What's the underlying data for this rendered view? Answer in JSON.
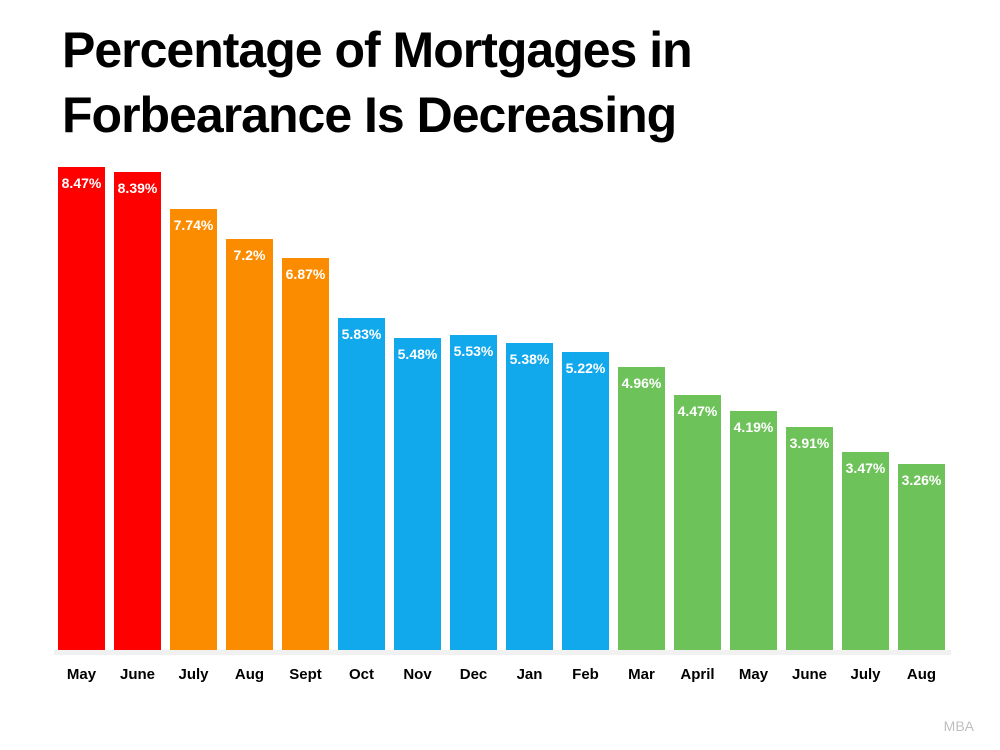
{
  "title": {
    "line1": "Percentage of Mortgages in",
    "line2": "Forbearance Is Decreasing"
  },
  "source_label": "MBA",
  "colors": {
    "red": "#FE0000",
    "orange": "#FB8C00",
    "blue": "#12A8EC",
    "green": "#6EC25A",
    "baseline_band": "#F1F1F1",
    "source_text": "#BFBFBF",
    "title_text": "#000000",
    "bar_value_text": "#FFFFFF"
  },
  "chart_data": {
    "type": "bar",
    "title": "Percentage of Mortgages in Forbearance Is Decreasing",
    "categories": [
      "May",
      "June",
      "July",
      "Aug",
      "Sept",
      "Oct",
      "Nov",
      "Dec",
      "Jan",
      "Feb",
      "Mar",
      "April",
      "May",
      "June",
      "July",
      "Aug"
    ],
    "values": [
      8.47,
      8.39,
      7.74,
      7.2,
      6.87,
      5.83,
      5.48,
      5.53,
      5.38,
      5.22,
      4.96,
      4.47,
      4.19,
      3.91,
      3.47,
      3.26
    ],
    "value_labels": [
      "8.47%",
      "8.39%",
      "7.74%",
      "7.2%",
      "6.87%",
      "5.83%",
      "5.48%",
      "5.53%",
      "5.38%",
      "5.22%",
      "4.96%",
      "4.47%",
      "4.19%",
      "3.91%",
      "3.47%",
      "3.26%"
    ],
    "bar_colors": [
      "#FE0000",
      "#FE0000",
      "#FB8C00",
      "#FB8C00",
      "#FB8C00",
      "#12A8EC",
      "#12A8EC",
      "#12A8EC",
      "#12A8EC",
      "#12A8EC",
      "#6EC25A",
      "#6EC25A",
      "#6EC25A",
      "#6EC25A",
      "#6EC25A",
      "#6EC25A"
    ],
    "xlabel": "",
    "ylabel": "",
    "ylim": [
      0,
      8.47
    ],
    "grid": false,
    "legend": false,
    "value_labels_position": "inside-top",
    "source": "MBA"
  }
}
